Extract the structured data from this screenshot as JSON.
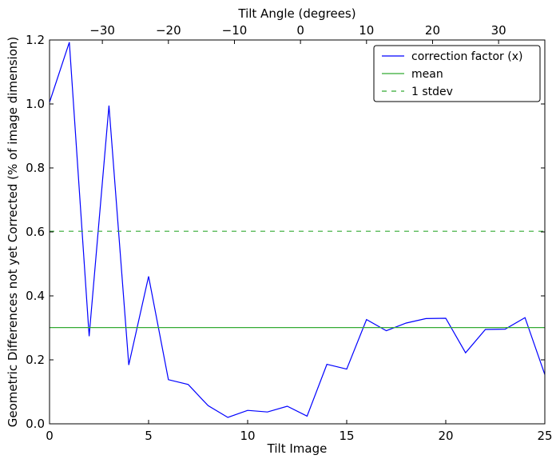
{
  "chart_data": {
    "type": "line",
    "xlabel": "Tilt Image",
    "ylabel": "Geometric Differences not yet Corrected (% of image dimension)",
    "top_xlabel": "Tilt Angle (degrees)",
    "xlim": [
      0,
      25
    ],
    "ylim": [
      0,
      1.2
    ],
    "top_xlim": [
      -38,
      37
    ],
    "x_ticks": [
      0,
      5,
      10,
      15,
      20,
      25
    ],
    "x_tick_labels": [
      "0",
      "5",
      "10",
      "15",
      "20",
      "25"
    ],
    "y_ticks": [
      0.0,
      0.2,
      0.4,
      0.6,
      0.8,
      1.0,
      1.2
    ],
    "y_tick_labels": [
      "0.0",
      "0.2",
      "0.4",
      "0.6",
      "0.8",
      "1.0",
      "1.2"
    ],
    "top_ticks": [
      -30,
      -20,
      -10,
      0,
      10,
      20,
      30
    ],
    "top_tick_labels": [
      "−30",
      "−20",
      "−10",
      "0",
      "10",
      "20",
      "30"
    ],
    "legend_position": "top-right",
    "grid": false,
    "series": [
      {
        "name": "correction factor (x)",
        "color": "#0000ff",
        "style": "solid",
        "x": [
          0,
          1,
          2,
          3,
          4,
          5,
          6,
          7,
          8,
          9,
          10,
          11,
          12,
          13,
          14,
          15,
          16,
          17,
          18,
          19,
          20,
          21,
          22,
          23,
          24,
          25
        ],
        "values": [
          1.005,
          1.193,
          0.274,
          0.995,
          0.184,
          0.461,
          0.138,
          0.123,
          0.057,
          0.02,
          0.042,
          0.037,
          0.055,
          0.024,
          0.186,
          0.171,
          0.326,
          0.291,
          0.315,
          0.329,
          0.33,
          0.222,
          0.295,
          0.296,
          0.332,
          0.154
        ]
      },
      {
        "name": "mean",
        "color": "#33aa33",
        "style": "solid",
        "x": [
          0,
          25
        ],
        "values": [
          0.301,
          0.301
        ]
      },
      {
        "name": "1 stdev",
        "color": "#33aa33",
        "style": "dashed",
        "x": [
          0,
          25
        ],
        "values": [
          0.602,
          0.602
        ]
      }
    ]
  }
}
